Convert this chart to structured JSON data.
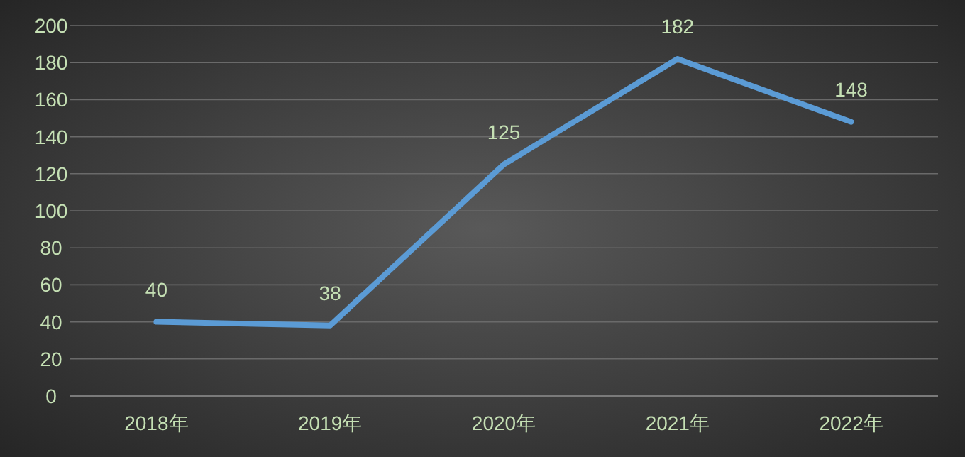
{
  "chart_data": {
    "type": "line",
    "categories": [
      "2018年",
      "2019年",
      "2020年",
      "2021年",
      "2022年"
    ],
    "values": [
      40,
      38,
      125,
      182,
      148
    ],
    "color": "#5b9bd5",
    "ylim": [
      0,
      200
    ],
    "yticks": [
      0,
      20,
      40,
      60,
      80,
      100,
      120,
      140,
      160,
      180,
      200
    ],
    "grid": "y",
    "data_labels": true,
    "marker": "none",
    "line_style": "solid"
  }
}
